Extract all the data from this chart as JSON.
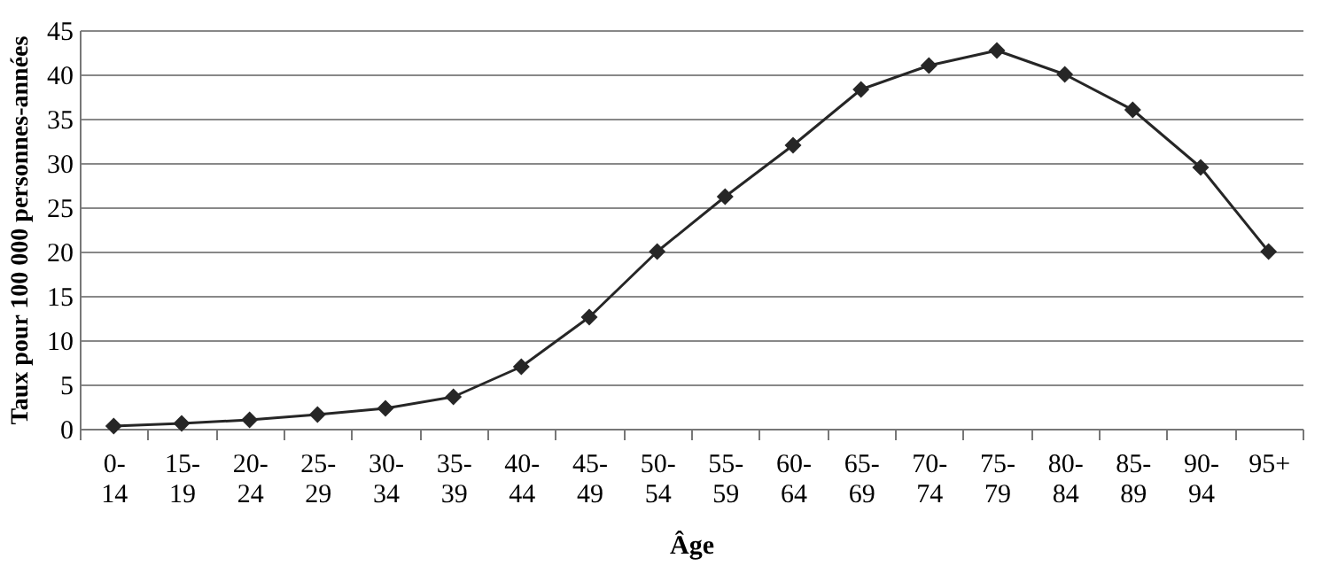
{
  "chart_data": {
    "type": "line",
    "xlabel": "Âge",
    "ylabel": "Taux pour 100 000 personnes-années",
    "categories": [
      "0-14",
      "15-19",
      "20-24",
      "25-29",
      "30-34",
      "35-39",
      "40-44",
      "45-49",
      "50-54",
      "55-59",
      "60-64",
      "65-69",
      "70-74",
      "75-79",
      "80-84",
      "85-89",
      "90-94",
      "95+"
    ],
    "series": [
      {
        "color": "#262626",
        "values": [
          0.3,
          0.6,
          1.0,
          1.6,
          2.3,
          3.6,
          7.0,
          12.6,
          20,
          26.2,
          32,
          38.3,
          41,
          42.7,
          40,
          36,
          29.5,
          20
        ]
      }
    ],
    "ylim": [
      0,
      45
    ],
    "yticks": [
      0,
      5,
      10,
      15,
      20,
      25,
      30,
      35,
      40,
      45
    ],
    "grid": "y",
    "marker": "diamond",
    "line_style": "solid"
  }
}
